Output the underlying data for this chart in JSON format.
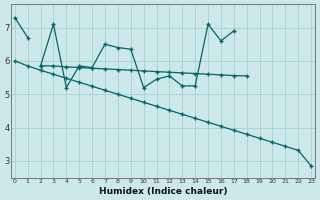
{
  "xlabel": "Humidex (Indice chaleur)",
  "bg_color": "#cce8e8",
  "line_color": "#006666",
  "grid_color": "#aad4d4",
  "series": [
    {
      "x": [
        0,
        1
      ],
      "y": [
        7.3,
        6.7
      ]
    },
    {
      "x": [
        2,
        3,
        4,
        5,
        6,
        7,
        8,
        9,
        10,
        11,
        12,
        13,
        14,
        15,
        16,
        17
      ],
      "y": [
        5.85,
        7.1,
        5.2,
        5.85,
        5.8,
        6.5,
        6.4,
        6.35,
        5.2,
        5.45,
        5.55,
        5.25,
        5.25,
        7.1,
        6.6,
        6.9
      ]
    },
    {
      "x": [
        2,
        3,
        4,
        5,
        6,
        7,
        8,
        9,
        10,
        11,
        12,
        13,
        14,
        15,
        16,
        17,
        18
      ],
      "y": [
        5.85,
        5.85,
        5.82,
        5.8,
        5.78,
        5.76,
        5.74,
        5.72,
        5.7,
        5.68,
        5.66,
        5.64,
        5.62,
        5.6,
        5.58,
        5.56,
        5.55
      ]
    },
    {
      "x": [
        0,
        1,
        2,
        3,
        4,
        5,
        6,
        7,
        8,
        9,
        10,
        11,
        12,
        13,
        14,
        15,
        16,
        17,
        18,
        19,
        20,
        21,
        22,
        23
      ],
      "y": [
        6.0,
        5.85,
        5.72,
        5.6,
        5.48,
        5.36,
        5.24,
        5.12,
        5.0,
        4.88,
        4.76,
        4.64,
        4.52,
        4.4,
        4.28,
        4.16,
        4.04,
        3.92,
        3.8,
        3.68,
        3.56,
        3.44,
        3.32,
        2.85
      ]
    }
  ],
  "ylim": [
    2.5,
    7.7
  ],
  "xlim": [
    -0.3,
    23.3
  ],
  "yticks": [
    3,
    4,
    5,
    6,
    7
  ],
  "xticks": [
    0,
    1,
    2,
    3,
    4,
    5,
    6,
    7,
    8,
    9,
    10,
    11,
    12,
    13,
    14,
    15,
    16,
    17,
    18,
    19,
    20,
    21,
    22,
    23
  ]
}
